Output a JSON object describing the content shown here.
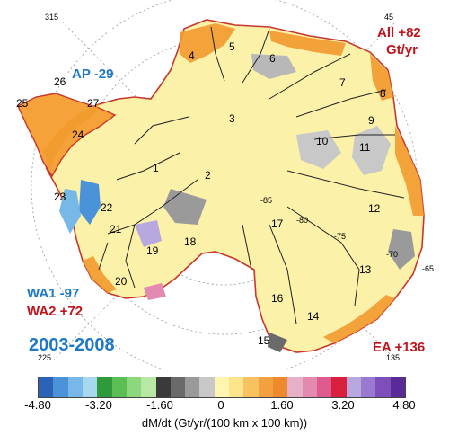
{
  "labels": {
    "period": "2003-2008",
    "ap": "AP -29",
    "all": "All +82",
    "all_unit": "Gt/yr",
    "wa1": "WA1 -97",
    "wa2": "WA2 +72",
    "ea": "EA +136"
  },
  "longitude_labels": [
    "315",
    "45",
    "225",
    "135"
  ],
  "latitude_labels": [
    "-85",
    "-80",
    "-75",
    "-70",
    "-65"
  ],
  "basins": [
    "1",
    "2",
    "3",
    "4",
    "5",
    "6",
    "7",
    "8",
    "9",
    "10",
    "11",
    "12",
    "13",
    "14",
    "15",
    "16",
    "17",
    "18",
    "19",
    "20",
    "21",
    "22",
    "23",
    "24",
    "25",
    "26",
    "27"
  ],
  "legend": {
    "ticks": [
      "-4.80",
      "-3.20",
      "-1.60",
      "0",
      "1.60",
      "3.20",
      "4.80"
    ],
    "unit": "dM/dt (Gt/yr/(100 km x 100 km))",
    "colors": [
      "#2b63b8",
      "#4a93d8",
      "#78b8e8",
      "#a8d8ee",
      "#2e9a3c",
      "#5cbf55",
      "#8dd77e",
      "#b8e8a6",
      "#3a3a3a",
      "#6a6a6a",
      "#9a9a9a",
      "#c8c8c8",
      "#fdf5b0",
      "#fbe48a",
      "#f8c260",
      "#f3a040",
      "#ef8a2c",
      "#e6b0c8",
      "#e48ab0",
      "#de5a8c",
      "#d8203c",
      "#b8a8e0",
      "#9a7ad0",
      "#7c50b8",
      "#5a2a98"
    ]
  }
}
